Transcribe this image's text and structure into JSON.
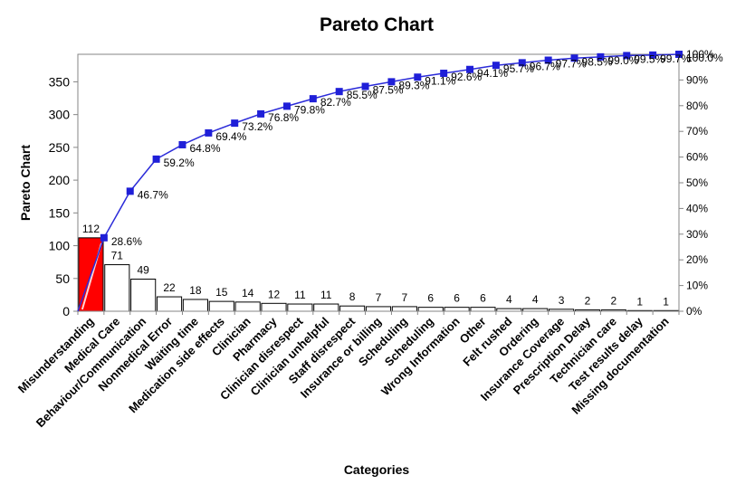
{
  "chart_data": {
    "type": "bar",
    "title": "Pareto Chart",
    "xlabel": "Categories",
    "ylabel": "Pareto Chart",
    "ylim": [
      0,
      392
    ],
    "y_ticks": [
      0,
      50,
      100,
      150,
      200,
      250,
      300,
      350
    ],
    "y2lim": [
      0,
      100
    ],
    "y2_ticks": [
      "0%",
      "10%",
      "20%",
      "30%",
      "40%",
      "50%",
      "60%",
      "70%",
      "80%",
      "90%",
      "100%"
    ],
    "categories": [
      "Misunderstanding",
      "Medical Care",
      "Behaviour/Communication",
      "Nonmedical Error",
      "Waiting time",
      "Medication side effects",
      "Clinician",
      "Pharmacy",
      "Clinician disrespect",
      "Clinician unhelpful",
      "Staff disrespect",
      "Insurance or billing",
      "Scheduling",
      "Scheduling",
      "Wrong Information",
      "Other",
      "Felt rushed",
      "Ordering",
      "Insurance Coverage",
      "Prescription Delay",
      "Technician care",
      "Test results delay",
      "Missing documentation"
    ],
    "series": [
      {
        "values": [
          112,
          71,
          49,
          22,
          18,
          15,
          14,
          12,
          11,
          11,
          8,
          7,
          7,
          6,
          6,
          6,
          4,
          4,
          3,
          2,
          2,
          1,
          1
        ],
        "labels": [
          "112",
          "71",
          "49",
          "22",
          "18",
          "15",
          "14",
          "12",
          "11",
          "11",
          "8",
          "7",
          "7",
          "6",
          "6",
          "6",
          "4",
          "4",
          "3",
          "2",
          "2",
          "1",
          "1"
        ]
      },
      {
        "axis": "right",
        "values": [
          28.6,
          46.7,
          59.2,
          64.8,
          69.4,
          73.2,
          76.8,
          79.8,
          82.7,
          85.5,
          87.5,
          89.3,
          91.1,
          92.6,
          94.1,
          95.7,
          96.7,
          97.7,
          98.5,
          99.0,
          99.5,
          99.7,
          100.0
        ],
        "labels": [
          "28.6%",
          "46.7%",
          "59.2%",
          "64.8%",
          "69.4%",
          "73.2%",
          "76.8%",
          "79.8%",
          "82.7%",
          "85.5%",
          "87.5%",
          "89.3%",
          "91.1%",
          "92.6%",
          "94.1%",
          "95.7%",
          "96.7%",
          "97.7%",
          "98.5%",
          "99.0%",
          "99.5%",
          "99.7%",
          "100.0%"
        ]
      }
    ],
    "highlight_color": "#ff0000",
    "bar_color": "#ffffff",
    "line_color": "#2b2bd9",
    "marker_color": "#1f1fd8",
    "grid": false
  }
}
